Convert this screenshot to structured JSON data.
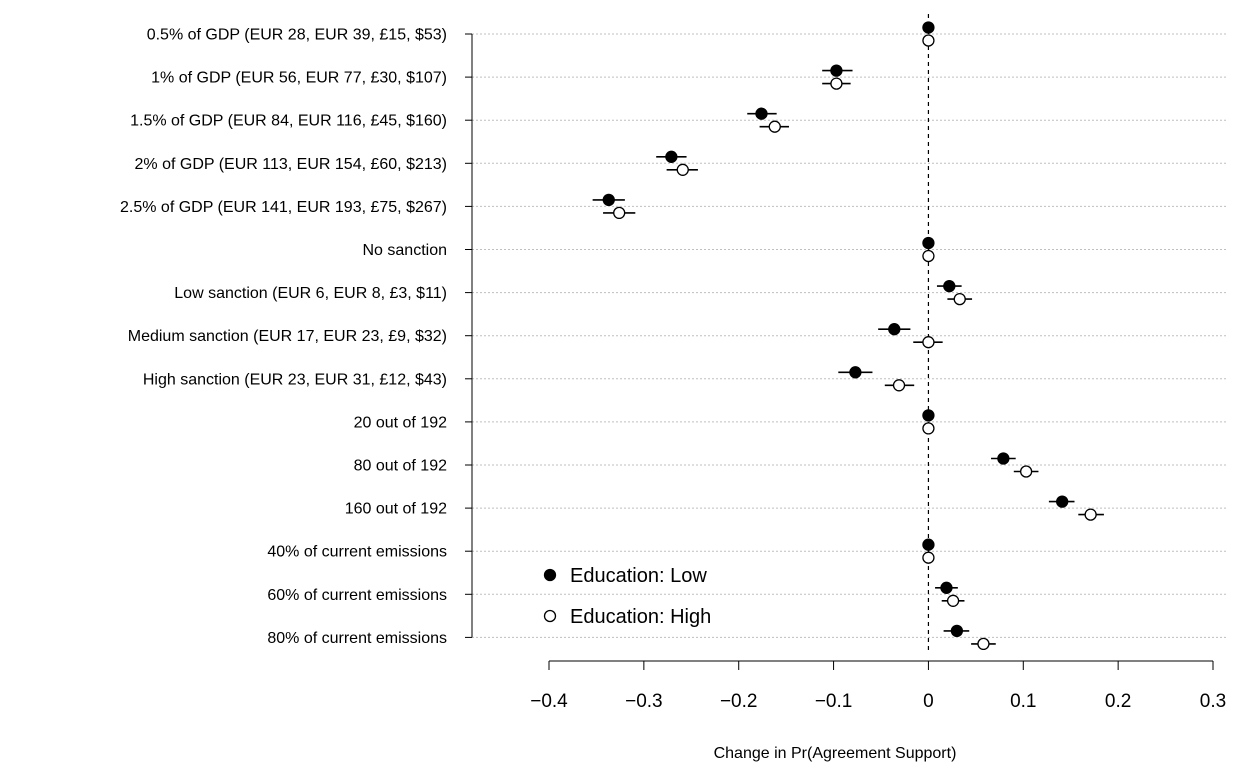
{
  "chart_data": {
    "type": "scatter",
    "xlabel": "Change in Pr(Agreement Support)",
    "xlim": [
      -0.4,
      0.3
    ],
    "x_ticks": [
      -0.4,
      -0.3,
      -0.2,
      -0.1,
      0,
      0.1,
      0.2,
      0.3
    ],
    "x_tick_labels": [
      "−0.4",
      "−0.3",
      "−0.2",
      "−0.1",
      "0",
      "0.1",
      "0.2",
      "0.3"
    ],
    "reference_line": 0,
    "grid": true,
    "categories": [
      "0.5% of GDP (EUR 28, EUR 39, £15, $53)",
      "1% of GDP (EUR 56, EUR 77, £30, $107)",
      "1.5% of GDP (EUR 84, EUR 116, £45, $160)",
      "2% of GDP (EUR 113, EUR 154, £60, $213)",
      "2.5% of GDP (EUR 141, EUR 193, £75, $267)",
      "No sanction",
      "Low sanction (EUR 6, EUR 8, £3, $11)",
      "Medium sanction (EUR 17, EUR 23, £9, $32)",
      "High sanction (EUR 23, EUR 31, £12, $43)",
      "20 out of 192",
      "80 out of 192",
      "160 out of 192",
      "40% of current emissions",
      "60% of current emissions",
      "80% of current emissions"
    ],
    "series": [
      {
        "name": "Education: Low",
        "marker": "filled-circle",
        "estimates": [
          0,
          -0.097,
          -0.176,
          -0.271,
          -0.337,
          0,
          0.022,
          -0.036,
          -0.077,
          0,
          0.079,
          0.141,
          0,
          0.019,
          0.03
        ],
        "ci_low": [
          0,
          -0.112,
          -0.191,
          -0.287,
          -0.354,
          0,
          0.009,
          -0.053,
          -0.095,
          0,
          0.066,
          0.127,
          0,
          0.007,
          0.016
        ],
        "ci_high": [
          0,
          -0.08,
          -0.16,
          -0.255,
          -0.32,
          0,
          0.035,
          -0.019,
          -0.059,
          0,
          0.092,
          0.154,
          0,
          0.031,
          0.043
        ]
      },
      {
        "name": "Education: High",
        "marker": "open-circle",
        "estimates": [
          0,
          -0.097,
          -0.162,
          -0.259,
          -0.326,
          0,
          0.033,
          0,
          -0.031,
          0,
          0.103,
          0.171,
          0,
          0.026,
          0.058
        ],
        "ci_low": [
          0,
          -0.112,
          -0.178,
          -0.276,
          -0.343,
          0,
          0.02,
          -0.016,
          -0.046,
          0,
          0.09,
          0.158,
          0,
          0.014,
          0.045
        ],
        "ci_high": [
          0,
          -0.082,
          -0.147,
          -0.243,
          -0.309,
          0,
          0.046,
          0.015,
          -0.015,
          0,
          0.116,
          0.185,
          0,
          0.038,
          0.071
        ]
      }
    ],
    "legend": {
      "position": "bottom-left",
      "entries": [
        "Education: Low",
        "Education: High"
      ]
    }
  }
}
